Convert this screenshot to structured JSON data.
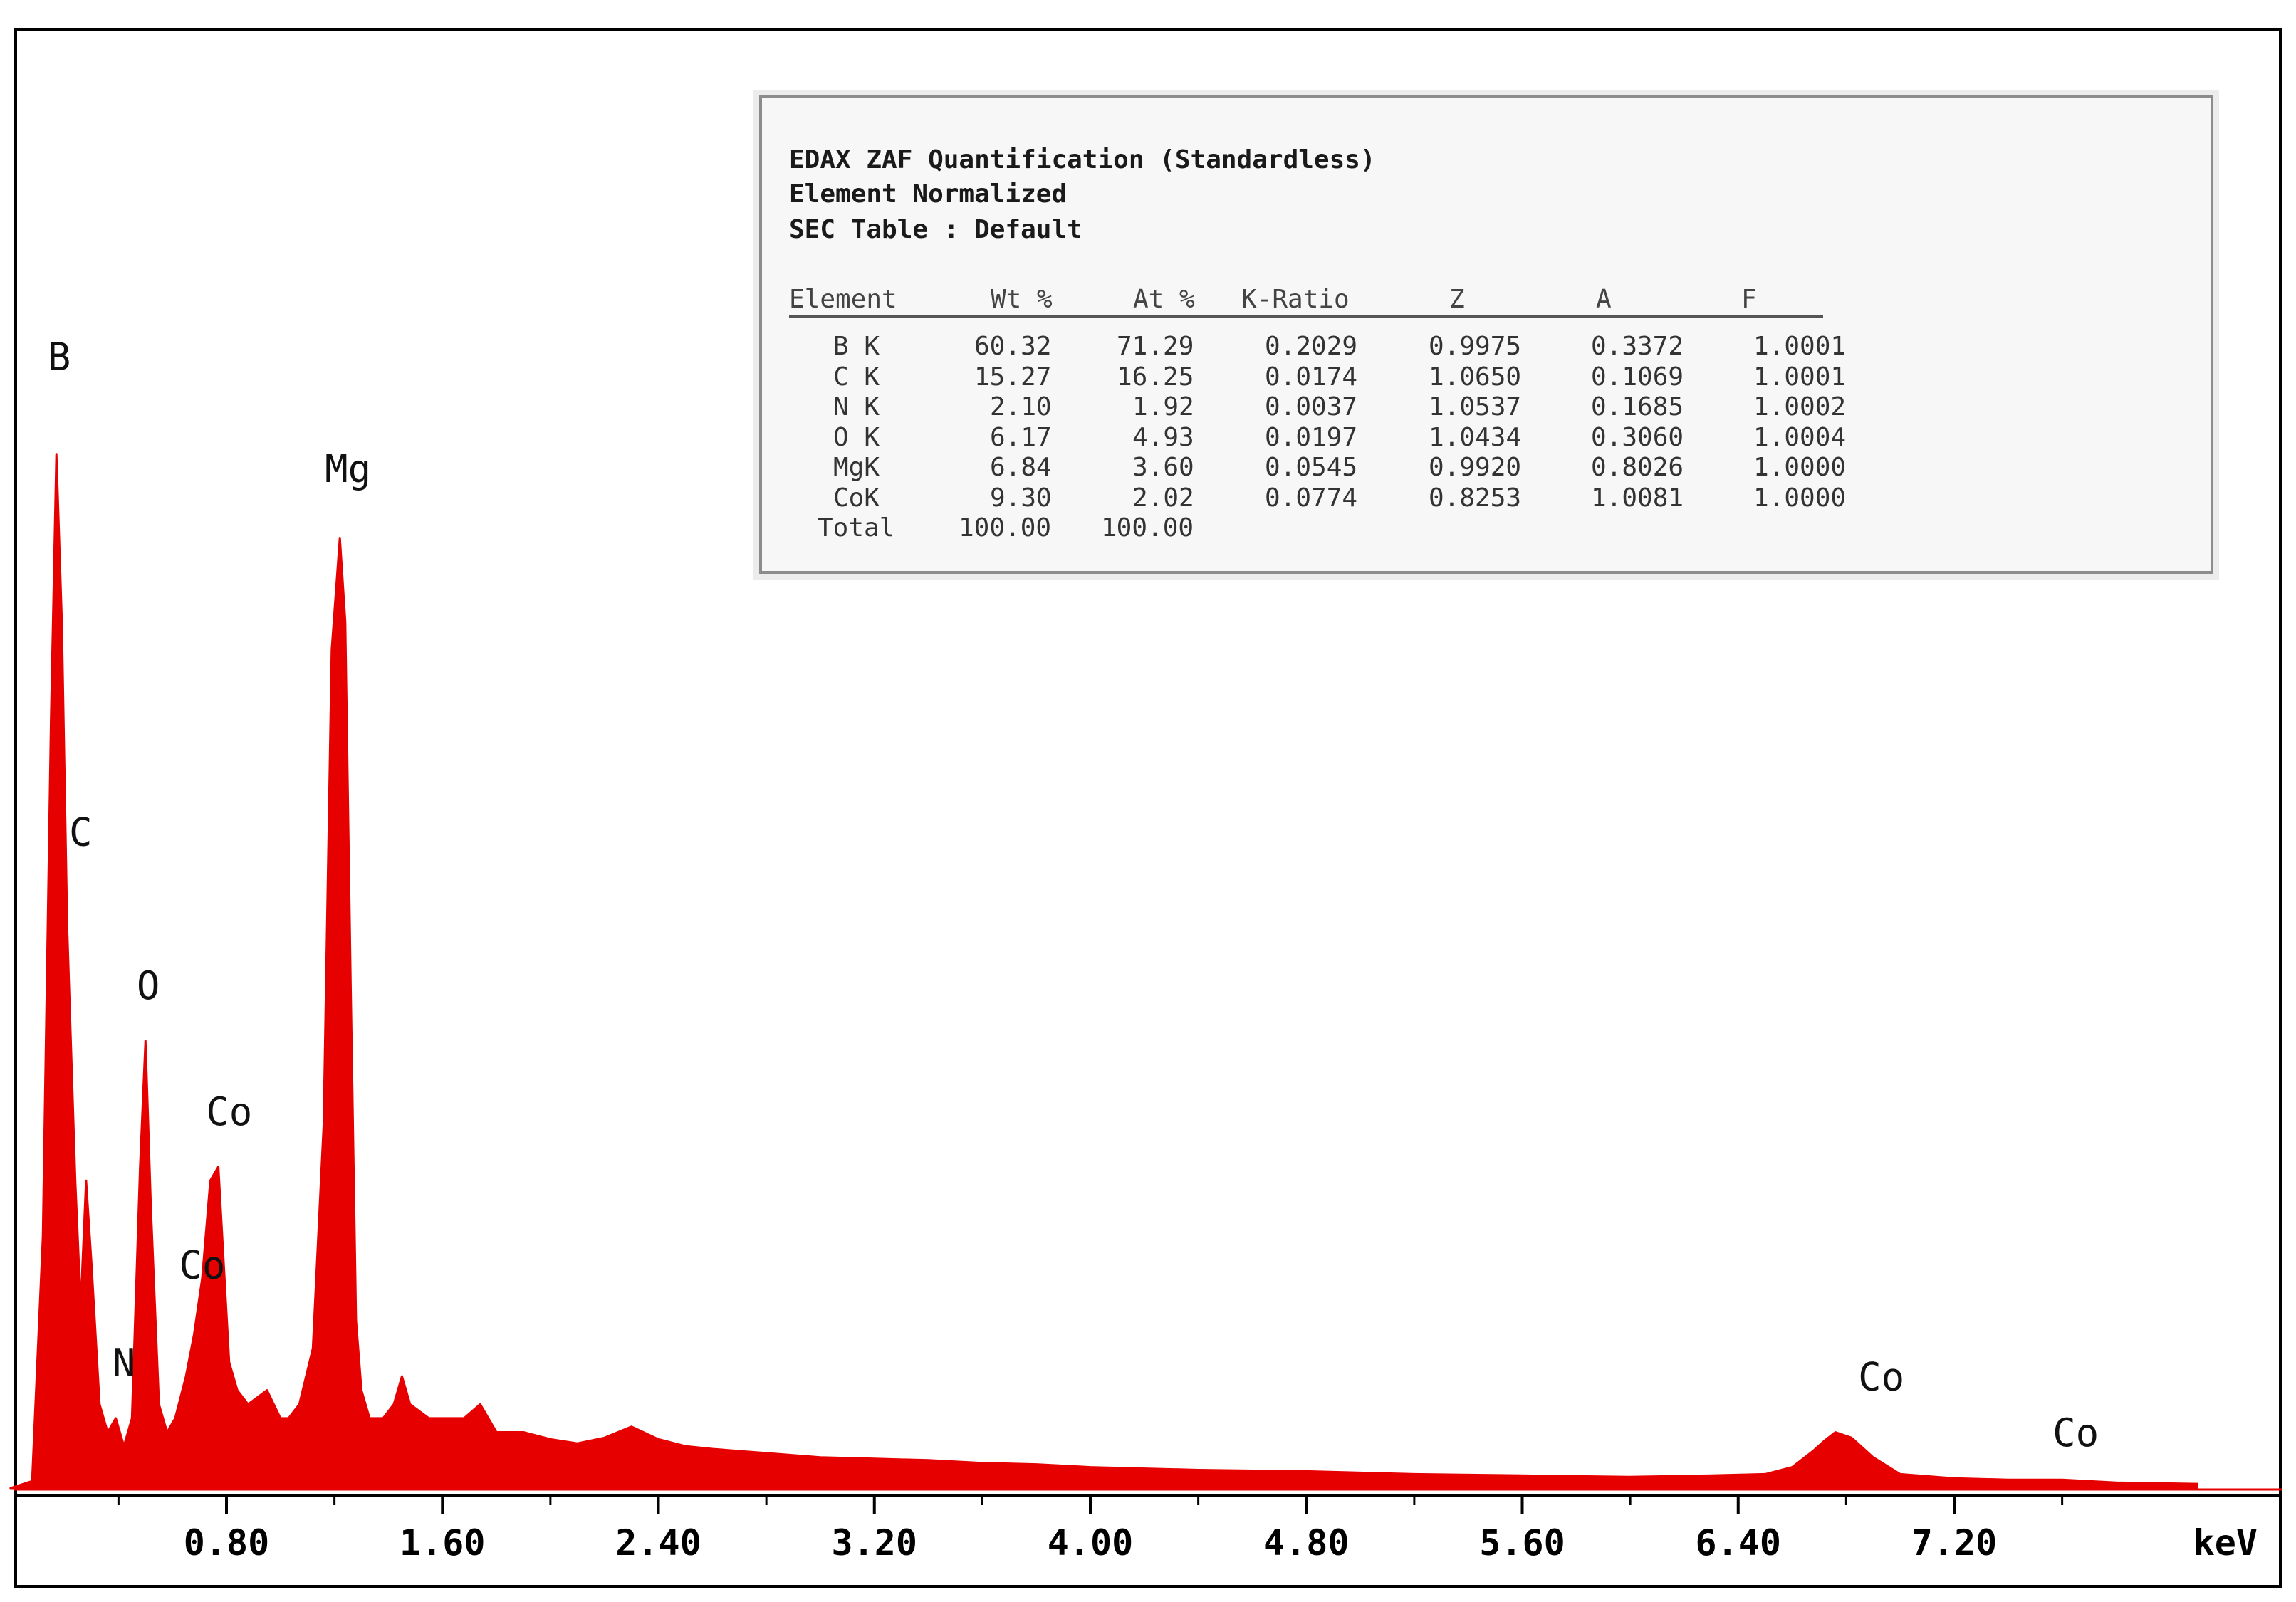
{
  "quant_box": {
    "title_lines": [
      "EDAX ZAF Quantification (Standardless)",
      "Element Normalized",
      "SEC Table : Default"
    ],
    "columns": [
      "Element",
      "Wt %",
      "At %",
      "K-Ratio",
      "Z",
      "A",
      "F"
    ],
    "rows": [
      [
        "B K",
        "60.32",
        "71.29",
        "0.2029",
        "0.9975",
        "0.3372",
        "1.0001"
      ],
      [
        "C K",
        "15.27",
        "16.25",
        "0.0174",
        "1.0650",
        "0.1069",
        "1.0001"
      ],
      [
        "N K",
        "2.10",
        "1.92",
        "0.0037",
        "1.0537",
        "0.1685",
        "1.0002"
      ],
      [
        "O K",
        "6.17",
        "4.93",
        "0.0197",
        "1.0434",
        "0.3060",
        "1.0004"
      ],
      [
        "MgK",
        "6.84",
        "3.60",
        "0.0545",
        "0.9920",
        "0.8026",
        "1.0000"
      ],
      [
        "CoK",
        "9.30",
        "2.02",
        "0.0774",
        "0.8253",
        "1.0081",
        "1.0000"
      ],
      [
        "Total",
        "100.00",
        "100.00",
        "",
        "",
        "",
        ""
      ]
    ]
  },
  "chart_data": {
    "type": "area",
    "title": "",
    "xlabel": "keV",
    "ylabel": "",
    "xlim": [
      0,
      8.1
    ],
    "ylim": [
      0,
      1.0
    ],
    "x_ticks": [
      "0.80",
      "1.60",
      "2.40",
      "3.20",
      "4.00",
      "4.80",
      "5.60",
      "6.40",
      "7.20"
    ],
    "x_tick_values": [
      0.8,
      1.6,
      2.4,
      3.2,
      4.0,
      4.8,
      5.6,
      6.4,
      7.2
    ],
    "series": [
      {
        "color": "#e60000",
        "x": [
          0.0,
          0.08,
          0.12,
          0.15,
          0.17,
          0.19,
          0.21,
          0.24,
          0.26,
          0.28,
          0.3,
          0.33,
          0.36,
          0.39,
          0.42,
          0.45,
          0.48,
          0.5,
          0.52,
          0.55,
          0.58,
          0.61,
          0.65,
          0.68,
          0.71,
          0.74,
          0.77,
          0.79,
          0.81,
          0.84,
          0.88,
          0.95,
          1.0,
          1.03,
          1.07,
          1.12,
          1.16,
          1.19,
          1.22,
          1.24,
          1.26,
          1.28,
          1.3,
          1.33,
          1.38,
          1.42,
          1.45,
          1.48,
          1.55,
          1.62,
          1.68,
          1.74,
          1.8,
          1.9,
          2.0,
          2.1,
          2.2,
          2.3,
          2.4,
          2.5,
          2.6,
          2.8,
          3.0,
          3.2,
          3.4,
          3.6,
          3.8,
          4.0,
          4.4,
          4.8,
          5.2,
          5.6,
          6.0,
          6.3,
          6.5,
          6.6,
          6.68,
          6.72,
          6.76,
          6.82,
          6.9,
          7.0,
          7.2,
          7.4,
          7.6,
          7.7,
          7.8,
          8.1
        ],
        "y": [
          0.0,
          0.005,
          0.18,
          0.55,
          0.74,
          0.62,
          0.4,
          0.22,
          0.13,
          0.22,
          0.16,
          0.06,
          0.04,
          0.05,
          0.03,
          0.05,
          0.23,
          0.32,
          0.2,
          0.06,
          0.04,
          0.05,
          0.08,
          0.11,
          0.15,
          0.22,
          0.23,
          0.16,
          0.09,
          0.07,
          0.06,
          0.07,
          0.05,
          0.05,
          0.06,
          0.1,
          0.26,
          0.6,
          0.68,
          0.62,
          0.36,
          0.12,
          0.07,
          0.05,
          0.05,
          0.06,
          0.08,
          0.06,
          0.05,
          0.05,
          0.05,
          0.06,
          0.04,
          0.04,
          0.035,
          0.032,
          0.036,
          0.044,
          0.035,
          0.03,
          0.028,
          0.025,
          0.022,
          0.021,
          0.02,
          0.018,
          0.017,
          0.015,
          0.013,
          0.012,
          0.01,
          0.009,
          0.008,
          0.009,
          0.01,
          0.015,
          0.027,
          0.034,
          0.04,
          0.036,
          0.022,
          0.01,
          0.007,
          0.006,
          0.006,
          0.005,
          0.004,
          0.003
        ]
      }
    ],
    "peak_labels": [
      {
        "text": "B",
        "x": 0.18,
        "y": 0.8
      },
      {
        "text": "C",
        "x": 0.26,
        "y": 0.46
      },
      {
        "text": "N",
        "x": 0.42,
        "y": 0.08
      },
      {
        "text": "O",
        "x": 0.51,
        "y": 0.35
      },
      {
        "text": "Co",
        "x": 0.81,
        "y": 0.26
      },
      {
        "text": "Co",
        "x": 0.71,
        "y": 0.15
      },
      {
        "text": "Mg",
        "x": 1.25,
        "y": 0.72
      },
      {
        "text": "Co",
        "x": 6.93,
        "y": 0.07
      },
      {
        "text": "Co",
        "x": 7.65,
        "y": 0.03
      }
    ]
  }
}
